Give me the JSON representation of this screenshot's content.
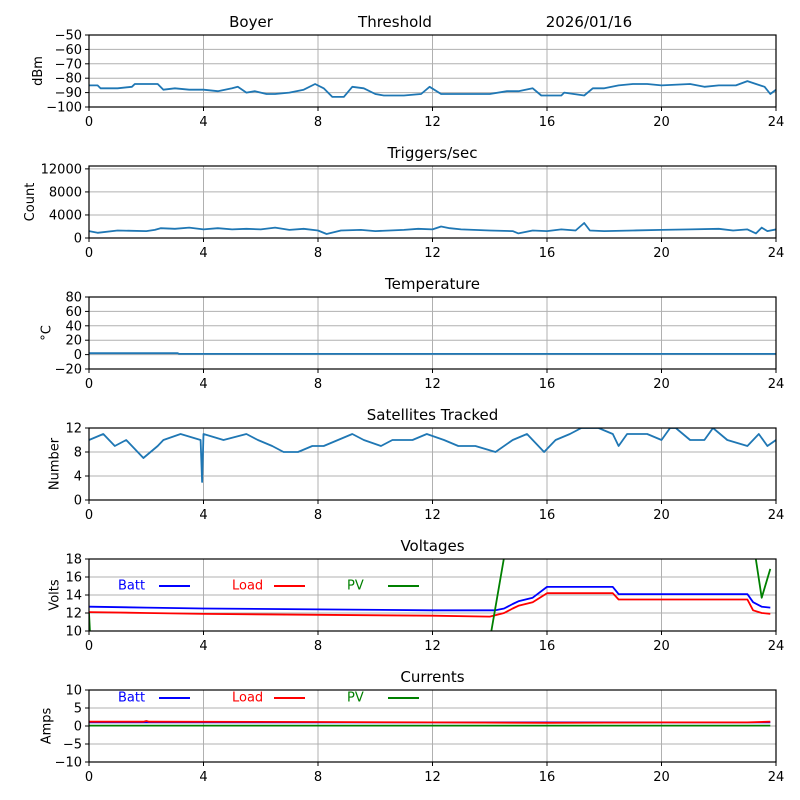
{
  "header": {
    "station": "Boyer",
    "mode": "Threshold",
    "date": "2026/01/16"
  },
  "chart_data": [
    {
      "id": "signal",
      "type": "line",
      "title": "",
      "xlabel": "",
      "ylabel": "dBm",
      "xlim": [
        0,
        24
      ],
      "ylim": [
        -100,
        -50
      ],
      "xticks": [
        "0",
        "4",
        "8",
        "12",
        "16",
        "20",
        "24"
      ],
      "yticks": [
        "−100",
        "−90",
        "−80",
        "−70",
        "−60",
        "−50"
      ],
      "ytick_values": [
        -100,
        -90,
        -80,
        -70,
        -60,
        -50
      ],
      "grid": true,
      "series": [
        {
          "name": "dBm",
          "color": "#1f77b4",
          "x": [
            0,
            0.3,
            0.4,
            1.0,
            1.5,
            1.6,
            2.4,
            2.6,
            3.0,
            3.5,
            4.0,
            4.5,
            5.0,
            5.2,
            5.5,
            5.8,
            6.2,
            6.5,
            7.0,
            7.5,
            7.9,
            8.2,
            8.5,
            8.9,
            9.2,
            9.6,
            10.0,
            10.3,
            11.0,
            11.6,
            11.9,
            12.3,
            13.0,
            14.0,
            14.6,
            15.0,
            15.5,
            15.8,
            16.5,
            16.6,
            17.3,
            17.6,
            18.0,
            18.5,
            19.0,
            19.5,
            20.0,
            21.0,
            21.5,
            22.0,
            22.6,
            23.0,
            23.3,
            23.6,
            23.8,
            24.0
          ],
          "y": [
            -85,
            -85,
            -87,
            -87,
            -86,
            -84,
            -84,
            -88,
            -87,
            -88,
            -88,
            -89,
            -87,
            -86,
            -90,
            -89,
            -91,
            -91,
            -90,
            -88,
            -84,
            -87,
            -93,
            -93,
            -86,
            -87,
            -91,
            -92,
            -92,
            -91,
            -86,
            -91,
            -91,
            -91,
            -89,
            -89,
            -87,
            -92,
            -92,
            -90,
            -92,
            -87,
            -87,
            -85,
            -84,
            -84,
            -85,
            -84,
            -86,
            -85,
            -85,
            -82,
            -84,
            -86,
            -91,
            -88
          ]
        }
      ]
    },
    {
      "id": "triggers",
      "type": "line",
      "title": "Triggers/sec",
      "xlabel": "",
      "ylabel": "Count",
      "xlim": [
        0,
        24
      ],
      "ylim": [
        0,
        12500
      ],
      "xticks": [
        "0",
        "4",
        "8",
        "12",
        "16",
        "20",
        "24"
      ],
      "yticks": [
        "0",
        "4000",
        "8000",
        "12000"
      ],
      "ytick_values": [
        0,
        4000,
        8000,
        12000
      ],
      "grid": true,
      "series": [
        {
          "name": "Count",
          "color": "#1f77b4",
          "x": [
            0,
            0.3,
            1.0,
            2.0,
            2.3,
            2.5,
            3.0,
            3.5,
            4.0,
            4.5,
            5.0,
            5.5,
            6.0,
            6.5,
            7.0,
            7.5,
            8.0,
            8.3,
            8.8,
            9.5,
            10.0,
            11.0,
            11.5,
            12.0,
            12.3,
            12.6,
            13.0,
            14.0,
            14.8,
            15.0,
            15.5,
            16.0,
            16.5,
            17.0,
            17.3,
            17.5,
            18.0,
            19.0,
            20.0,
            21.0,
            22.0,
            22.5,
            23.0,
            23.3,
            23.5,
            23.7,
            24.0
          ],
          "y": [
            1200,
            900,
            1300,
            1200,
            1400,
            1700,
            1600,
            1800,
            1500,
            1700,
            1500,
            1600,
            1500,
            1800,
            1400,
            1600,
            1300,
            700,
            1300,
            1400,
            1200,
            1400,
            1600,
            1500,
            2000,
            1700,
            1500,
            1300,
            1200,
            800,
            1300,
            1200,
            1500,
            1300,
            2600,
            1300,
            1200,
            1300,
            1400,
            1500,
            1600,
            1300,
            1500,
            800,
            1800,
            1200,
            1500
          ]
        }
      ]
    },
    {
      "id": "temperature",
      "type": "line",
      "title": "Temperature",
      "xlabel": "",
      "ylabel": "°C",
      "xlim": [
        0,
        24
      ],
      "ylim": [
        -20,
        80
      ],
      "xticks": [
        "0",
        "4",
        "8",
        "12",
        "16",
        "20",
        "24"
      ],
      "yticks": [
        "−20",
        "0",
        "20",
        "40",
        "60",
        "80"
      ],
      "ytick_values": [
        -20,
        0,
        20,
        40,
        60,
        80
      ],
      "grid": true,
      "series": [
        {
          "name": "Temperature",
          "color": "#1f77b4",
          "x": [
            0,
            3.1,
            3.15,
            24
          ],
          "y": [
            2,
            2,
            1,
            1
          ]
        }
      ]
    },
    {
      "id": "satellites",
      "type": "line",
      "title": "Satellites Tracked",
      "xlabel": "",
      "ylabel": "Number",
      "xlim": [
        0,
        24
      ],
      "ylim": [
        0,
        12
      ],
      "xticks": [
        "0",
        "4",
        "8",
        "12",
        "16",
        "20",
        "24"
      ],
      "yticks": [
        "0",
        "4",
        "8",
        "12"
      ],
      "ytick_values": [
        0,
        4,
        8,
        12
      ],
      "grid": true,
      "series": [
        {
          "name": "Number",
          "color": "#1f77b4",
          "x": [
            0,
            0.5,
            0.9,
            1.3,
            1.9,
            2.4,
            2.6,
            3.2,
            3.9,
            3.95,
            4.0,
            4.7,
            5.5,
            5.9,
            6.4,
            6.8,
            7.3,
            7.8,
            8.2,
            9.2,
            9.6,
            10.2,
            10.6,
            11.3,
            11.8,
            12.4,
            12.9,
            13.5,
            14.2,
            14.8,
            15.3,
            15.9,
            16.3,
            16.8,
            17.2,
            17.8,
            18.3,
            18.5,
            18.8,
            19.5,
            20.0,
            20.3,
            20.5,
            21.0,
            21.5,
            21.8,
            22.3,
            23.0,
            23.4,
            23.7,
            24.0
          ],
          "y": [
            10,
            11,
            9,
            10,
            7,
            9,
            10,
            11,
            10,
            3,
            11,
            10,
            11,
            10,
            9,
            8,
            8,
            9,
            9,
            11,
            10,
            9,
            10,
            10,
            11,
            10,
            9,
            9,
            8,
            10,
            11,
            8,
            10,
            11,
            12,
            12,
            11,
            9,
            11,
            11,
            10,
            12,
            12,
            10,
            10,
            12,
            10,
            9,
            11,
            9,
            10
          ]
        }
      ]
    },
    {
      "id": "voltages",
      "type": "line",
      "title": "Voltages",
      "xlabel": "",
      "ylabel": "Volts",
      "xlim": [
        0,
        24
      ],
      "ylim": [
        10,
        18
      ],
      "xticks": [
        "0",
        "4",
        "8",
        "12",
        "16",
        "20",
        "24"
      ],
      "yticks": [
        "10",
        "12",
        "14",
        "16",
        "18"
      ],
      "ytick_values": [
        10,
        12,
        14,
        16,
        18
      ],
      "grid": true,
      "legend": {
        "placement": "top",
        "entries": [
          "Batt",
          "Load",
          "PV"
        ]
      },
      "series": [
        {
          "name": "Batt",
          "color": "#0000ff",
          "x": [
            0,
            2,
            4,
            8,
            12,
            14.2,
            14.5,
            14.8,
            15.0,
            15.5,
            16.0,
            18.3,
            18.5,
            23.0,
            23.2,
            23.5,
            23.8
          ],
          "y": [
            12.7,
            12.6,
            12.5,
            12.4,
            12.3,
            12.3,
            12.5,
            13.0,
            13.3,
            13.7,
            14.9,
            14.9,
            14.1,
            14.1,
            13.2,
            12.7,
            12.6
          ]
        },
        {
          "name": "Load",
          "color": "#ff0000",
          "x": [
            0,
            2,
            4,
            8,
            12,
            14.0,
            14.5,
            14.8,
            15.0,
            15.5,
            16.0,
            18.3,
            18.5,
            23.0,
            23.2,
            23.5,
            23.8
          ],
          "y": [
            12.1,
            12.0,
            11.9,
            11.8,
            11.7,
            11.6,
            12.0,
            12.5,
            12.8,
            13.2,
            14.2,
            14.2,
            13.5,
            13.5,
            12.3,
            12.0,
            11.9
          ]
        },
        {
          "name": "PV",
          "color": "#008000",
          "x": [
            0,
            0.05,
            14.0,
            14.6,
            23.2,
            23.5,
            23.8
          ],
          "y": [
            12.0,
            9.0,
            9.0,
            20.0,
            20.0,
            13.7,
            16.9
          ]
        }
      ]
    },
    {
      "id": "currents",
      "type": "line",
      "title": "Currents",
      "xlabel": "",
      "ylabel": "Amps",
      "xlim": [
        0,
        24
      ],
      "ylim": [
        -10,
        10
      ],
      "xticks": [
        "0",
        "4",
        "8",
        "12",
        "16",
        "20",
        "24"
      ],
      "yticks": [
        "−10",
        "−5",
        "0",
        "5",
        "10"
      ],
      "ytick_values": [
        -10,
        -5,
        0,
        5,
        10
      ],
      "grid": true,
      "legend": {
        "placement": "top",
        "entries": [
          "Batt",
          "Load",
          "PV"
        ]
      },
      "series": [
        {
          "name": "Batt",
          "color": "#0000ff",
          "x": [
            0,
            23.8
          ],
          "y": [
            1.0,
            1.0
          ]
        },
        {
          "name": "Load",
          "color": "#ff0000",
          "x": [
            0,
            1.9,
            2.0,
            2.1,
            8,
            12,
            16,
            20,
            23,
            23.8
          ],
          "y": [
            1.2,
            1.2,
            1.4,
            1.2,
            1.1,
            1.0,
            0.9,
            1.0,
            1.0,
            1.2
          ]
        },
        {
          "name": "PV",
          "color": "#008000",
          "x": [
            0,
            23.8
          ],
          "y": [
            0.1,
            0.1
          ]
        }
      ]
    }
  ]
}
